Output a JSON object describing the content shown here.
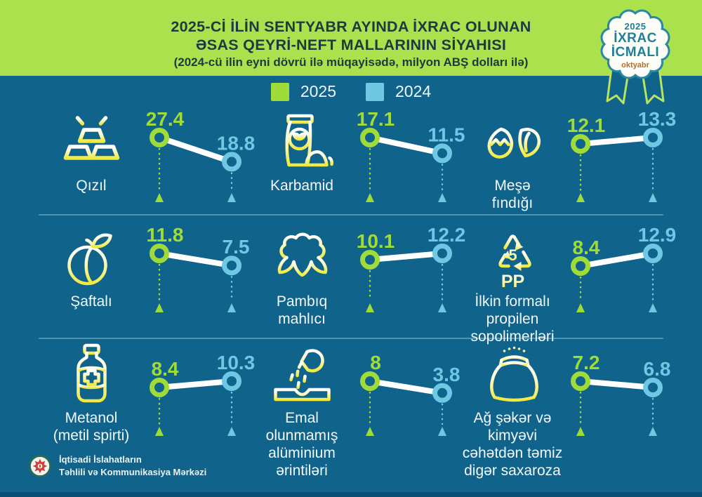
{
  "header": {
    "title_line1": "2025-Cİ İLİN SENTYABR AYINDA İXRAC OLUNAN",
    "title_line2": "ƏSAS QEYRİ-NEFT MALLARININ SİYAHISI",
    "subtitle": "(2024-cü ilin eyni dövrü ilə müqayisədə, milyon ABŞ dolları ilə)",
    "badge": {
      "year": "2025",
      "line1": "İXRAC",
      "line2": "İCMALI",
      "month": "oktyabr"
    }
  },
  "legend": [
    {
      "label": "2025",
      "color": "#9FDC3A"
    },
    {
      "label": "2024",
      "color": "#6FC8E3"
    }
  ],
  "colors": {
    "header_bg": "#ABE14D",
    "background": "#10648C",
    "title_text": "#1E3A40",
    "green": "#9FDC3A",
    "blue": "#6FC8E3",
    "line_white": "#FFFFFF",
    "divider": "#4E95B4",
    "badge_teal": "#1F7F98",
    "badge_month_orange": "#B06F2F",
    "icon_yellow": "#F2E93F"
  },
  "chart_data": {
    "type": "line",
    "subtype": "slope-comparison-per-product",
    "title": "2025-Cİ İLİN SENTYABR AYINDA İXRAC OLUNAN ƏSAS QEYRİ-NEFT MALLARININ SİYAHISI",
    "unit": "milyon ABŞ dolları",
    "legend_position": "top-center",
    "series": [
      {
        "name": "2025",
        "color": "#9FDC3A",
        "values": [
          27.4,
          17.1,
          12.1,
          11.8,
          10.1,
          8.4,
          8.4,
          8,
          7.2
        ]
      },
      {
        "name": "2024",
        "color": "#6FC8E3",
        "values": [
          18.8,
          11.5,
          13.3,
          7.5,
          12.2,
          12.9,
          10.3,
          3.8,
          6.8
        ]
      }
    ],
    "categories": [
      "Qızıl",
      "Karbamid",
      "Meşə fındığı",
      "Şaftalı",
      "Pambıq mahlıcı",
      "İlkin formalı propilen sopolimerləri",
      "Metanol (metil spirti)",
      "Emal olunmamış alüminium ərintiləri",
      "Ağ şəkər və kimyəvi cəhətdən təmiz digər saxaroza"
    ],
    "panels": [
      {
        "label": "Qızıl",
        "display_label": "Qızıl",
        "icon": "gold-bars",
        "v2025": 27.4,
        "v2024": 18.8
      },
      {
        "label": "Karbamid",
        "display_label": "Karbamid",
        "icon": "fertilizer-bag",
        "v2025": 17.1,
        "v2024": 11.5
      },
      {
        "label": "Meşə fındığı",
        "display_label": "Meşə\nfındığı",
        "icon": "hazelnut",
        "v2025": 12.1,
        "v2024": 13.3
      },
      {
        "label": "Şaftalı",
        "display_label": "Şaftalı",
        "icon": "peach",
        "v2025": 11.8,
        "v2024": 7.5
      },
      {
        "label": "Pambıq mahlıcı",
        "display_label": "Pambıq\nmahlıcı",
        "icon": "cotton",
        "v2025": 10.1,
        "v2024": 12.2
      },
      {
        "label": "İlkin formalı propilen sopolimerləri",
        "display_label": "İlkin formalı\npropilen\nsopolimerləri",
        "icon": "pp-recycling",
        "v2025": 8.4,
        "v2024": 12.9
      },
      {
        "label": "Metanol (metil spirti)",
        "display_label": "Metanol\n(metil spirti)",
        "icon": "methanol-bottle",
        "v2025": 8.4,
        "v2024": 10.3
      },
      {
        "label": "Emal olunmamış alüminium ərintiləri",
        "display_label": "Emal\nolunmamış\nalüminium\nərintiləri",
        "icon": "aluminium-pouring",
        "v2025": 8,
        "v2024": 3.8
      },
      {
        "label": "Ağ şəkər və kimyəvi cəhətdən təmiz digər saxaroza",
        "display_label": "Ağ şəkər və\nkimyəvi\ncəhətdən təmiz\ndigər saxaroza",
        "icon": "sugar-sack",
        "v2025": 7.2,
        "v2024": 6.8
      }
    ]
  },
  "footer": {
    "org_line1": "İqtisadi İslahatların",
    "org_line2": "Təhlili və Kommunikasiya Mərkəzi"
  }
}
